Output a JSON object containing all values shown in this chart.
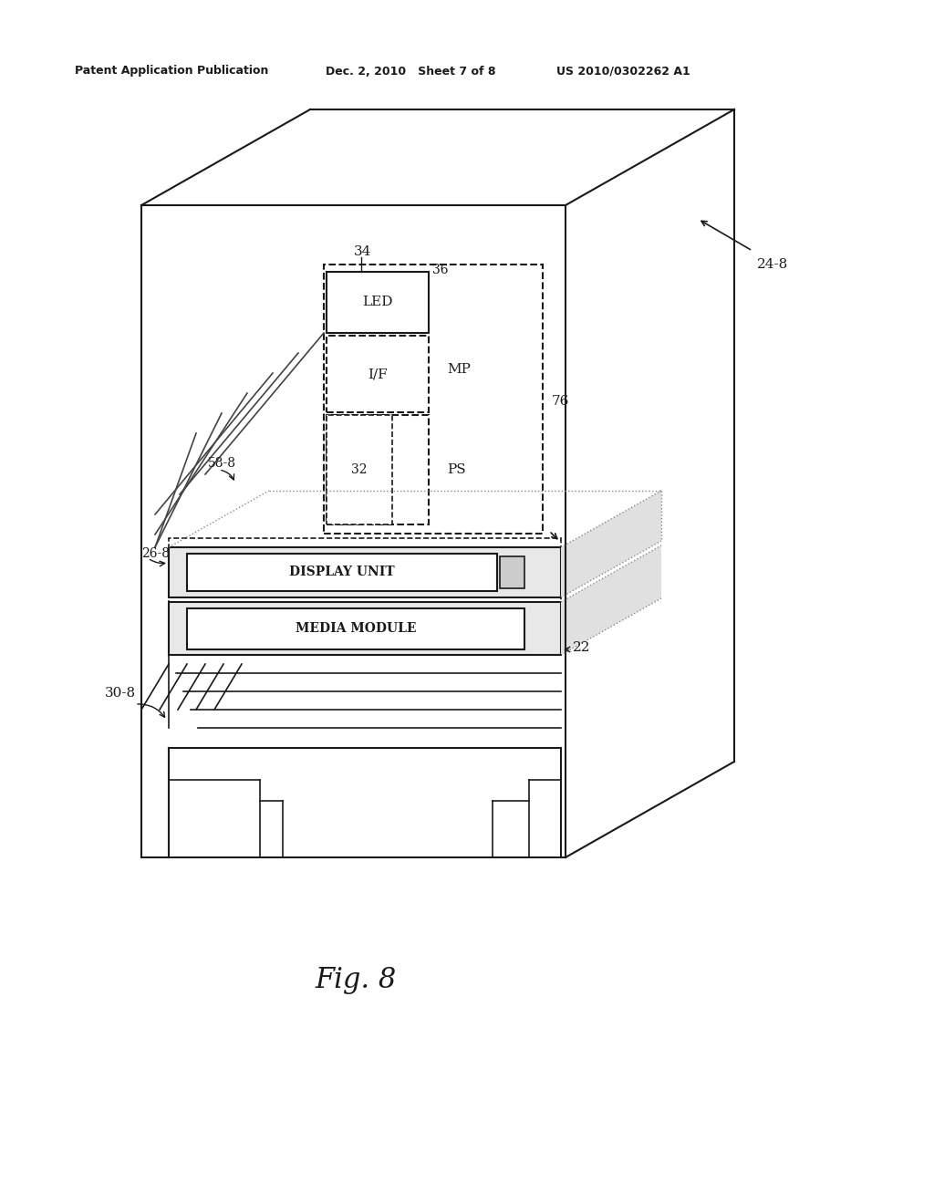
{
  "bg_color": "#ffffff",
  "line_color": "#1a1a1a",
  "header_left": "Patent Application Publication",
  "header_mid": "Dec. 2, 2010   Sheet 7 of 8",
  "header_right": "US 2010/0302262 A1",
  "fig_label": "Fig. 8",
  "labels": {
    "24_8": "24-8",
    "34": "34",
    "36": "36",
    "LED": "LED",
    "MP": "MP",
    "IF": "I/F",
    "PS": "PS",
    "32": "32",
    "76": "76",
    "58_8": "58-8",
    "26_8": "26-8",
    "DISPLAY_UNIT": "DISPLAY UNIT",
    "MEDIA_MODULE": "MEDIA MODULE",
    "22": "22",
    "30_8": "30-8"
  }
}
